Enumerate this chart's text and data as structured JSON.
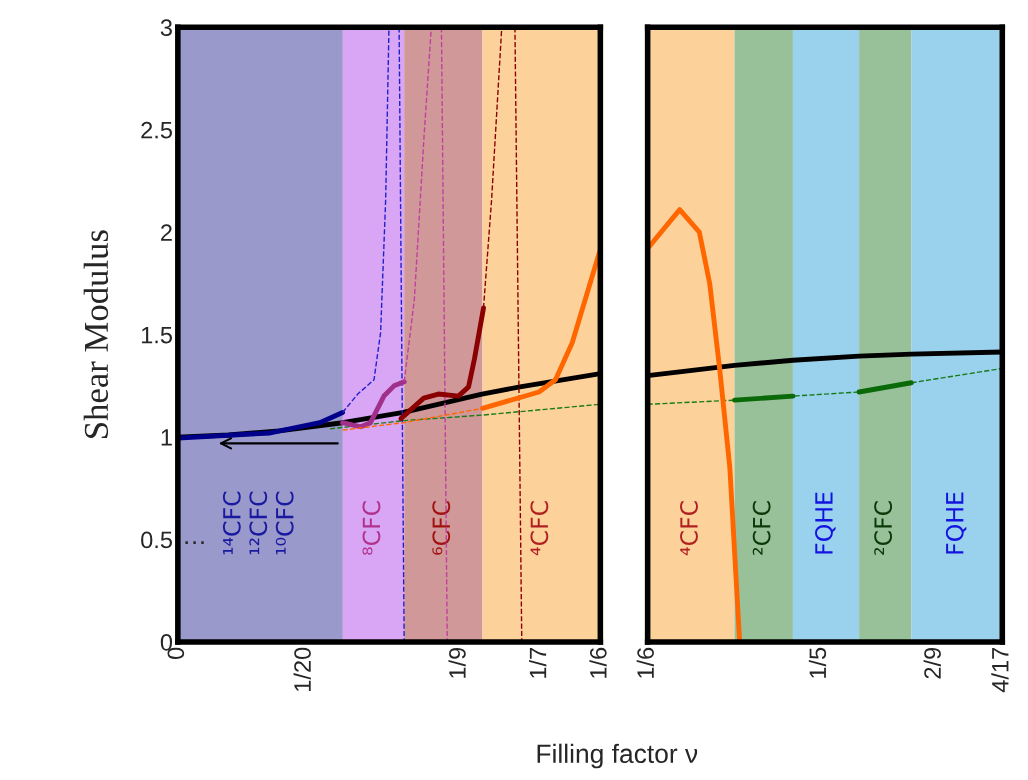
{
  "chart_data": [
    {
      "type": "line",
      "ylabel": "Shear Modulus",
      "xlabel": "Filling factor ν",
      "xlim": [
        0,
        0.1667
      ],
      "ylim": [
        0,
        3
      ],
      "xticks": [
        0,
        {
          "value": 0.05,
          "label": "1/20"
        },
        {
          "value": 0.1111,
          "label": "1/9"
        },
        {
          "value": 0.1429,
          "label": "1/7"
        },
        {
          "value": 0.1667,
          "label": "1/6"
        }
      ],
      "yticks": [
        0,
        0.5,
        1,
        1.5,
        2,
        2.5,
        3
      ],
      "grid": false,
      "legend": false,
      "bands": [
        {
          "axis": "x",
          "from": 0,
          "to": 0.0651,
          "color": "#9999cc",
          "label": "¹⁴CFC\n¹²CFC\n¹⁰CFC"
        },
        {
          "axis": "x",
          "from": 0.0651,
          "to": 0.0893,
          "color": "#d9a6f5",
          "label": "⁸CFC"
        },
        {
          "axis": "x",
          "from": 0.0893,
          "to": 0.1202,
          "color": "#d09898",
          "label": "⁶CFC"
        },
        {
          "axis": "x",
          "from": 0.1202,
          "to": 0.1667,
          "color": "#fdd19a",
          "label": "⁴CFC"
        }
      ],
      "annotations": [
        "…"
      ],
      "series": [
        {
          "color": "#000000",
          "line_style": "solid",
          "x": [
            0,
            0.02,
            0.04,
            0.065,
            0.089,
            0.12,
            0.135,
            0.1667
          ],
          "values": [
            1.0,
            1.01,
            1.03,
            1.07,
            1.12,
            1.21,
            1.245,
            1.31
          ]
        },
        {
          "color": "#1a7a1a",
          "line_style": "dashed",
          "x": [
            0.06,
            0.089,
            0.12,
            0.1667
          ],
          "values": [
            1.04,
            1.08,
            1.107,
            1.16
          ]
        },
        {
          "color": "#00008b",
          "line_style": "solid",
          "x": [
            0,
            0.0365,
            0.056,
            0.065
          ],
          "values": [
            0.995,
            1.02,
            1.07,
            1.12
          ]
        },
        {
          "color": "#2020cc",
          "line_style": "dashed",
          "x": [
            0.065,
            0.071,
            0.0774,
            0.08,
            0.082,
            0.0833
          ],
          "values": [
            1.12,
            1.21,
            1.28,
            1.51,
            2.16,
            3.0
          ]
        },
        {
          "color": "#2020cc",
          "line_style": "dashed",
          "x": [
            0.0873,
            0.0893
          ],
          "values": [
            3.0,
            0
          ]
        },
        {
          "color": "#a0308a",
          "line_style": "solid",
          "x": [
            0.065,
            0.0722,
            0.076,
            0.0813,
            0.0853,
            0.0893
          ],
          "values": [
            1.07,
            1.05,
            1.07,
            1.2,
            1.25,
            1.27
          ]
        },
        {
          "color": "#c040a0",
          "line_style": "dashed",
          "x": [
            0.0893,
            0.0933,
            0.0972,
            0.1
          ],
          "values": [
            1.27,
            1.67,
            2.48,
            3.0
          ]
        },
        {
          "color": "#c040a0",
          "line_style": "dashed",
          "x": [
            0.104,
            0.1063
          ],
          "values": [
            3.0,
            0
          ]
        },
        {
          "color": "#8b0000",
          "line_style": "solid",
          "x": [
            0.088,
            0.097,
            0.1028,
            0.1107,
            0.1147,
            0.117,
            0.1206
          ],
          "values": [
            1.09,
            1.19,
            1.21,
            1.2,
            1.245,
            1.38,
            1.63
          ]
        },
        {
          "color": "#8b0000",
          "line_style": "dashed",
          "x": [
            0.1206,
            0.1238,
            0.1278
          ],
          "values": [
            1.63,
            2.16,
            3.0
          ]
        },
        {
          "color": "#8b0000",
          "line_style": "dashed",
          "x": [
            0.133,
            0.1357
          ],
          "values": [
            3.0,
            0
          ]
        },
        {
          "color": "#ff6600",
          "line_style": "dashed",
          "x": [
            0.065,
            0.089,
            0.1202
          ],
          "values": [
            1.034,
            1.07,
            1.14
          ]
        },
        {
          "color": "#ff6600",
          "line_style": "solid",
          "x": [
            0.1202,
            0.1425,
            0.149,
            0.1556,
            0.1607,
            0.1663
          ],
          "values": [
            1.14,
            1.22,
            1.28,
            1.46,
            1.67,
            1.9
          ]
        }
      ]
    },
    {
      "type": "line",
      "xlim": [
        0.1667,
        0.2353
      ],
      "ylim": [
        0,
        3
      ],
      "xticks": [
        {
          "value": 0.1667,
          "label": "1/6"
        },
        {
          "value": 0.2,
          "label": "1/5"
        },
        {
          "value": 0.2222,
          "label": "2/9"
        },
        {
          "value": 0.2353,
          "label": "4/17"
        }
      ],
      "tick_labels": "x",
      "grid": false,
      "legend": false,
      "bands": [
        {
          "axis": "x",
          "from": 0.1667,
          "to": 0.1835,
          "color": "#fdd19a",
          "label": "⁴CFC"
        },
        {
          "axis": "x",
          "from": 0.1835,
          "to": 0.1948,
          "color": "#99c199",
          "label": "²CFC"
        },
        {
          "axis": "x",
          "from": 0.1948,
          "to": 0.2076,
          "color": "#9ad1ec",
          "label": "FQHE"
        },
        {
          "axis": "x",
          "from": 0.2076,
          "to": 0.2177,
          "color": "#99c199",
          "label": "²CFC"
        },
        {
          "axis": "x",
          "from": 0.2177,
          "to": 0.2353,
          "color": "#9ad1ec",
          "label": "FQHE"
        }
      ],
      "series": [
        {
          "color": "#000000",
          "line_style": "solid",
          "x": [
            0.1667,
            0.1835,
            0.1948,
            0.2076,
            0.2177,
            0.2353
          ],
          "values": [
            1.3,
            1.35,
            1.375,
            1.395,
            1.405,
            1.415
          ]
        },
        {
          "color": "#1a7a1a",
          "line_style": "dashed",
          "x": [
            0.1667,
            0.1835,
            0.1948,
            0.2076,
            0.2177,
            0.2353
          ],
          "values": [
            1.16,
            1.18,
            1.2,
            1.22,
            1.265,
            1.335
          ]
        },
        {
          "color": "#0a6a0a",
          "line_style": "solid",
          "x": [
            0.1835,
            0.1948
          ],
          "values": [
            1.18,
            1.2
          ]
        },
        {
          "color": "#0a6a0a",
          "line_style": "solid",
          "x": [
            0.2076,
            0.2177
          ],
          "values": [
            1.22,
            1.265
          ]
        },
        {
          "color": "#ff6600",
          "line_style": "solid",
          "x": [
            0.1667,
            0.1729,
            0.1767,
            0.1787,
            0.1806,
            0.1826,
            0.1845
          ],
          "values": [
            1.92,
            2.11,
            2.0,
            1.75,
            1.34,
            0.85,
            0
          ]
        }
      ]
    }
  ]
}
